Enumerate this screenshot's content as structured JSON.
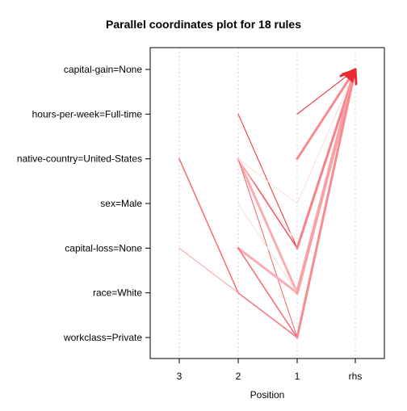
{
  "chart_data": {
    "type": "parallel-coordinates",
    "title": "Parallel coordinates plot for 18 rules",
    "xlabel": "Position",
    "ylabel": "",
    "x_ticks": [
      "3",
      "2",
      "1",
      "rhs"
    ],
    "y_items": [
      "capital-gain=None",
      "hours-per-week=Full-time",
      "native-country=United-States",
      "sex=Male",
      "capital-loss=None",
      "race=White",
      "workclass=Private"
    ],
    "grid": true,
    "rules": [
      {
        "path": [
          null,
          null,
          "hours-per-week=Full-time",
          "capital-gain=None"
        ],
        "shade": 0.95,
        "weight": 1
      },
      {
        "path": [
          null,
          "hours-per-week=Full-time",
          "capital-loss=None",
          "capital-gain=None"
        ],
        "shade": 0.9,
        "weight": 1
      },
      {
        "path": [
          null,
          null,
          "native-country=United-States",
          "capital-gain=None"
        ],
        "shade": 0.45,
        "weight": 3
      },
      {
        "path": [
          "native-country=United-States",
          "race=White",
          "workclass=Private",
          "capital-gain=None"
        ],
        "shade": 0.6,
        "weight": 1.5
      },
      {
        "path": [
          "capital-loss=None",
          "race=White",
          "workclass=Private",
          "capital-gain=None"
        ],
        "shade": 0.35,
        "weight": 1
      },
      {
        "path": [
          null,
          "native-country=United-States",
          "capital-loss=None",
          "capital-gain=None"
        ],
        "shade": 0.7,
        "weight": 1.5
      },
      {
        "path": [
          null,
          "native-country=United-States",
          "race=White",
          "capital-gain=None"
        ],
        "shade": 0.3,
        "weight": 3
      },
      {
        "path": [
          null,
          "native-country=United-States",
          "workclass=Private",
          "capital-gain=None"
        ],
        "shade": 0.65,
        "weight": 1
      },
      {
        "path": [
          null,
          "capital-loss=None",
          "race=White",
          "capital-gain=None"
        ],
        "shade": 0.3,
        "weight": 3
      },
      {
        "path": [
          null,
          "capital-loss=None",
          "workclass=Private",
          "capital-gain=None"
        ],
        "shade": 0.6,
        "weight": 1.5
      },
      {
        "path": [
          null,
          "race=White",
          "workclass=Private",
          "capital-gain=None"
        ],
        "shade": 0.55,
        "weight": 1
      },
      {
        "path": [
          null,
          "sex=Male",
          "race=White",
          "capital-gain=None"
        ],
        "shade": 0.08,
        "weight": 1
      },
      {
        "path": [
          null,
          null,
          "sex=Male",
          "capital-gain=None"
        ],
        "shade": 0.1,
        "weight": 1
      },
      {
        "path": [
          null,
          "native-country=United-States",
          "sex=Male",
          "capital-gain=None"
        ],
        "shade": 0.06,
        "weight": 1
      },
      {
        "path": [
          null,
          null,
          "capital-loss=None",
          "capital-gain=None"
        ],
        "shade": 0.5,
        "weight": 3
      },
      {
        "path": [
          null,
          null,
          "race=White",
          "capital-gain=None"
        ],
        "shade": 0.35,
        "weight": 4
      },
      {
        "path": [
          null,
          null,
          "workclass=Private",
          "capital-gain=None"
        ],
        "shade": 0.45,
        "weight": 3
      },
      {
        "path": [
          null,
          "native-country=United-States",
          null,
          null
        ],
        "shade": 0.05,
        "weight": 1
      }
    ]
  }
}
